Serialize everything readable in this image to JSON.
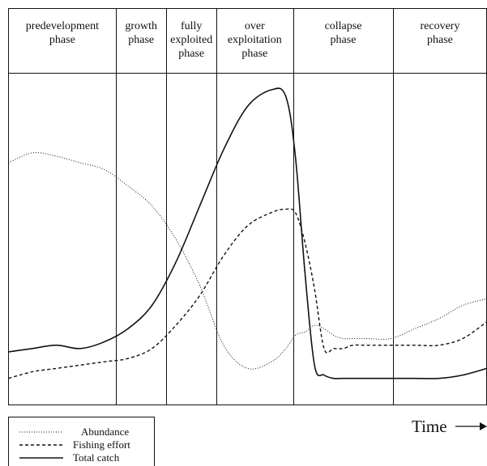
{
  "chart_data": {
    "type": "line",
    "xlabel": "Time",
    "phases": [
      {
        "name": "predevelopment phase",
        "lines": [
          "predevelopment",
          "phase"
        ],
        "x_start": 0,
        "x_end": 0.225
      },
      {
        "name": "growth phase",
        "lines": [
          "growth",
          "phase"
        ],
        "x_start": 0.225,
        "x_end": 0.33
      },
      {
        "name": "fully exploited phase",
        "lines": [
          "fully",
          "exploited",
          "phase"
        ],
        "x_start": 0.33,
        "x_end": 0.435
      },
      {
        "name": "over exploitation phase",
        "lines": [
          "over",
          "exploitation",
          "phase"
        ],
        "x_start": 0.435,
        "x_end": 0.595
      },
      {
        "name": "collapse phase",
        "lines": [
          "collapse",
          "phase"
        ],
        "x_start": 0.595,
        "x_end": 0.805
      },
      {
        "name": "recovery phase",
        "lines": [
          "recovery",
          "phase"
        ],
        "x_start": 0.805,
        "x_end": 1.0
      }
    ],
    "x": [
      0,
      0.05,
      0.1,
      0.15,
      0.2,
      0.25,
      0.3,
      0.35,
      0.4,
      0.45,
      0.5,
      0.55,
      0.58,
      0.6,
      0.62,
      0.64,
      0.66,
      0.68,
      0.7,
      0.72,
      0.75,
      0.8,
      0.85,
      0.9,
      0.95,
      1.0
    ],
    "series": [
      {
        "name": "Abundance",
        "style": "dotted",
        "values": [
          0.73,
          0.76,
          0.75,
          0.73,
          0.71,
          0.66,
          0.6,
          0.5,
          0.36,
          0.18,
          0.11,
          0.13,
          0.17,
          0.21,
          0.22,
          0.24,
          0.23,
          0.21,
          0.2,
          0.2,
          0.2,
          0.2,
          0.23,
          0.26,
          0.3,
          0.32
        ]
      },
      {
        "name": "Fishing effort",
        "style": "dashed",
        "values": [
          0.08,
          0.1,
          0.11,
          0.12,
          0.13,
          0.14,
          0.17,
          0.24,
          0.33,
          0.45,
          0.54,
          0.58,
          0.59,
          0.58,
          0.49,
          0.35,
          0.17,
          0.17,
          0.17,
          0.18,
          0.18,
          0.18,
          0.18,
          0.18,
          0.2,
          0.25
        ]
      },
      {
        "name": "Total catch",
        "style": "solid",
        "values": [
          0.16,
          0.17,
          0.18,
          0.17,
          0.19,
          0.23,
          0.3,
          0.43,
          0.6,
          0.77,
          0.9,
          0.95,
          0.93,
          0.75,
          0.4,
          0.12,
          0.09,
          0.08,
          0.08,
          0.08,
          0.08,
          0.08,
          0.08,
          0.08,
          0.09,
          0.11
        ]
      }
    ],
    "legend": [
      {
        "label": "Abundance",
        "style": "dotted"
      },
      {
        "label": "Fishing effort",
        "style": "dashed"
      },
      {
        "label": "Total catch",
        "style": "solid"
      }
    ]
  }
}
